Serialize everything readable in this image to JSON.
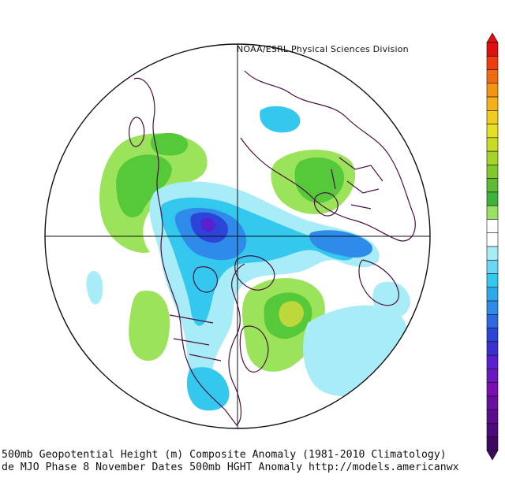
{
  "credit": "NOAA/ESRL Physical Sciences Division",
  "caption_line1": "500mb Geopotential Height (m) Composite Anomaly (1981-2010 Climatology)",
  "caption_line2": "de MJO Phase 8 November Dates 500mb HGHT Anomaly http://models.americanwx",
  "colors": {
    "pos_light": "#9be35a",
    "pos_mid": "#55c93a",
    "pos_strong": "#bcd83a",
    "pos_peak": "#dfe23c",
    "neg_light": "#a8ecf7",
    "neg_mid": "#35c8ee",
    "neg_strong": "#2f8bea",
    "neg_deep": "#2a45d8",
    "neg_core": "#5a1fcf",
    "land_outline": "#4a1040"
  },
  "colorbar": [
    "#e01010",
    "#f03c10",
    "#f06a10",
    "#f39414",
    "#f3b018",
    "#f0cc20",
    "#e6e024",
    "#c8dc24",
    "#a6d428",
    "#82c82c",
    "#5ebc34",
    "#3cb43c",
    "#9ae064",
    "#ffffff",
    "#ffffff",
    "#a8ecf7",
    "#6ad8f2",
    "#35c8ee",
    "#2fa8ea",
    "#2f8bea",
    "#2f68e0",
    "#2a45d8",
    "#3a30d0",
    "#5a1fcf",
    "#6a18c0",
    "#7a10b0",
    "#6a0ea0",
    "#5c0c8c",
    "#4e0a78",
    "#3e0860"
  ]
}
